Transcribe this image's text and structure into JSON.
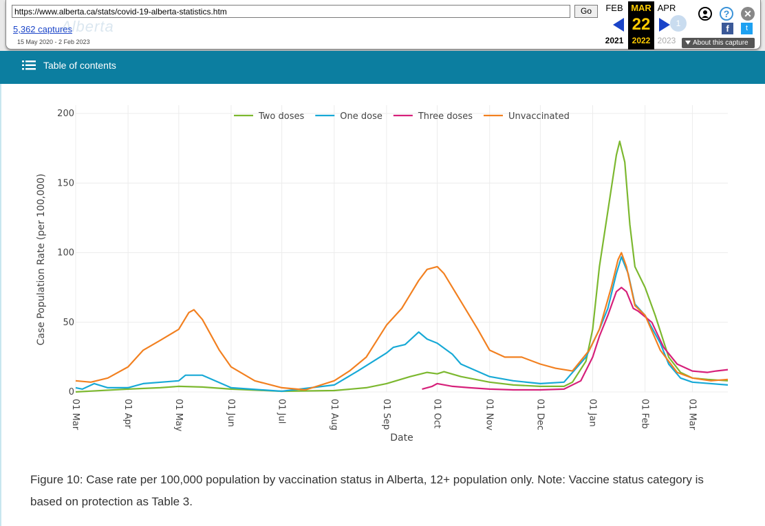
{
  "wayback": {
    "url": "https://www.alberta.ca/stats/covid-19-alberta-statistics.htm",
    "go_label": "Go",
    "captures": "5,362 captures",
    "date_range": "15 May 2020 - 2 Feb 2023",
    "logo_text": "Alberta",
    "months": {
      "prev": "FEB",
      "current": "MAR",
      "next": "APR"
    },
    "day": "22",
    "years": {
      "prev": "2021",
      "current": "2022",
      "next": "2023"
    },
    "spark_count": "1",
    "about_label": "About this capture",
    "icons": [
      "user-icon",
      "help-icon",
      "close-icon",
      "facebook-icon",
      "twitter-icon"
    ]
  },
  "site": {
    "toc_label": "Table of contents",
    "bar_color": "#0c7ea0"
  },
  "caption": "Figure 10: Case rate per 100,000 population by vaccination status in Alberta, 12+ population only. Note: Vaccine status category is based on protection as Table 3.",
  "chart_data": {
    "type": "line",
    "xlabel": "Date",
    "ylabel": "Case Population Rate (per 100,000)",
    "ylim": [
      0,
      200
    ],
    "yticks": [
      0,
      50,
      100,
      150,
      200
    ],
    "xlim": [
      "2021-03-01",
      "2022-03-22"
    ],
    "xticks": [
      {
        "date": "2021-03-01",
        "label": "01 Mar"
      },
      {
        "date": "2021-04-01",
        "label": "01 Apr"
      },
      {
        "date": "2021-05-01",
        "label": "01 May"
      },
      {
        "date": "2021-06-01",
        "label": "01 Jun"
      },
      {
        "date": "2021-07-01",
        "label": "01 Jul"
      },
      {
        "date": "2021-08-01",
        "label": "01 Aug"
      },
      {
        "date": "2021-09-01",
        "label": "01 Sep"
      },
      {
        "date": "2021-10-01",
        "label": "01 Oct"
      },
      {
        "date": "2021-11-01",
        "label": "01 Nov"
      },
      {
        "date": "2021-12-01",
        "label": "01 Dec"
      },
      {
        "date": "2022-01-01",
        "label": "01 Jan"
      },
      {
        "date": "2022-02-01",
        "label": "01 Feb"
      },
      {
        "date": "2022-03-01",
        "label": "01 Mar"
      }
    ],
    "grid": true,
    "legend_position": "top-center",
    "series": [
      {
        "name": "Two doses",
        "color": "#7cb82f",
        "points": [
          [
            "2021-03-01",
            0
          ],
          [
            "2021-04-01",
            2
          ],
          [
            "2021-04-20",
            3
          ],
          [
            "2021-05-01",
            4
          ],
          [
            "2021-05-15",
            3.5
          ],
          [
            "2021-06-01",
            2
          ],
          [
            "2021-07-01",
            0.5
          ],
          [
            "2021-08-01",
            1
          ],
          [
            "2021-08-20",
            3
          ],
          [
            "2021-09-01",
            6
          ],
          [
            "2021-09-15",
            11
          ],
          [
            "2021-09-25",
            14
          ],
          [
            "2021-10-01",
            13
          ],
          [
            "2021-10-05",
            14.5
          ],
          [
            "2021-10-15",
            11
          ],
          [
            "2021-11-01",
            7
          ],
          [
            "2021-11-15",
            5
          ],
          [
            "2021-12-01",
            4
          ],
          [
            "2021-12-15",
            4
          ],
          [
            "2021-12-20",
            7
          ],
          [
            "2021-12-28",
            22
          ],
          [
            "2022-01-01",
            45
          ],
          [
            "2022-01-05",
            90
          ],
          [
            "2022-01-10",
            130
          ],
          [
            "2022-01-15",
            170
          ],
          [
            "2022-01-17",
            180
          ],
          [
            "2022-01-20",
            165
          ],
          [
            "2022-01-23",
            120
          ],
          [
            "2022-01-26",
            90
          ],
          [
            "2022-02-01",
            75
          ],
          [
            "2022-02-07",
            55
          ],
          [
            "2022-02-15",
            25
          ],
          [
            "2022-02-22",
            14
          ],
          [
            "2022-03-01",
            10
          ],
          [
            "2022-03-10",
            9
          ],
          [
            "2022-03-22",
            8
          ]
        ]
      },
      {
        "name": "One dose",
        "color": "#17a9d6",
        "points": [
          [
            "2021-03-01",
            3
          ],
          [
            "2021-03-05",
            2
          ],
          [
            "2021-03-12",
            6
          ],
          [
            "2021-03-20",
            3
          ],
          [
            "2021-04-01",
            3
          ],
          [
            "2021-04-10",
            6
          ],
          [
            "2021-05-01",
            8
          ],
          [
            "2021-05-05",
            12
          ],
          [
            "2021-05-15",
            12
          ],
          [
            "2021-06-01",
            3
          ],
          [
            "2021-07-01",
            0.5
          ],
          [
            "2021-08-01",
            5
          ],
          [
            "2021-08-15",
            15
          ],
          [
            "2021-09-01",
            28
          ],
          [
            "2021-09-05",
            32
          ],
          [
            "2021-09-12",
            34
          ],
          [
            "2021-09-20",
            43
          ],
          [
            "2021-09-25",
            38
          ],
          [
            "2021-10-01",
            35
          ],
          [
            "2021-10-10",
            27
          ],
          [
            "2021-10-15",
            20
          ],
          [
            "2021-11-01",
            11
          ],
          [
            "2021-11-15",
            8
          ],
          [
            "2021-12-01",
            6
          ],
          [
            "2021-12-15",
            7
          ],
          [
            "2021-12-28",
            25
          ],
          [
            "2022-01-05",
            45
          ],
          [
            "2022-01-10",
            60
          ],
          [
            "2022-01-15",
            85
          ],
          [
            "2022-01-18",
            97
          ],
          [
            "2022-01-22",
            85
          ],
          [
            "2022-01-26",
            63
          ],
          [
            "2022-02-01",
            55
          ],
          [
            "2022-02-10",
            35
          ],
          [
            "2022-02-15",
            20
          ],
          [
            "2022-02-22",
            10
          ],
          [
            "2022-03-01",
            7
          ],
          [
            "2022-03-22",
            5
          ]
        ]
      },
      {
        "name": "Three doses",
        "color": "#d6207a",
        "points": [
          [
            "2021-09-22",
            2
          ],
          [
            "2021-09-28",
            4
          ],
          [
            "2021-10-01",
            6
          ],
          [
            "2021-10-10",
            4
          ],
          [
            "2021-10-20",
            3
          ],
          [
            "2021-11-01",
            2
          ],
          [
            "2021-11-15",
            1.5
          ],
          [
            "2021-12-01",
            1.5
          ],
          [
            "2021-12-15",
            2
          ],
          [
            "2021-12-25",
            8
          ],
          [
            "2022-01-01",
            25
          ],
          [
            "2022-01-05",
            40
          ],
          [
            "2022-01-10",
            55
          ],
          [
            "2022-01-15",
            72
          ],
          [
            "2022-01-18",
            75
          ],
          [
            "2022-01-21",
            72
          ],
          [
            "2022-01-25",
            60
          ],
          [
            "2022-01-28",
            58
          ],
          [
            "2022-02-05",
            50
          ],
          [
            "2022-02-12",
            32
          ],
          [
            "2022-02-20",
            20
          ],
          [
            "2022-03-01",
            15
          ],
          [
            "2022-03-10",
            14
          ],
          [
            "2022-03-15",
            15
          ],
          [
            "2022-03-22",
            16
          ]
        ]
      },
      {
        "name": "Unvaccinated",
        "color": "#f28020",
        "points": [
          [
            "2021-03-01",
            8
          ],
          [
            "2021-03-10",
            7
          ],
          [
            "2021-03-20",
            10
          ],
          [
            "2021-04-01",
            18
          ],
          [
            "2021-04-10",
            30
          ],
          [
            "2021-04-20",
            37
          ],
          [
            "2021-05-01",
            45
          ],
          [
            "2021-05-07",
            57
          ],
          [
            "2021-05-10",
            59
          ],
          [
            "2021-05-15",
            52
          ],
          [
            "2021-05-25",
            30
          ],
          [
            "2021-06-01",
            18
          ],
          [
            "2021-06-15",
            8
          ],
          [
            "2021-07-01",
            3
          ],
          [
            "2021-07-15",
            1.5
          ],
          [
            "2021-08-01",
            8
          ],
          [
            "2021-08-10",
            15
          ],
          [
            "2021-08-20",
            25
          ],
          [
            "2021-09-01",
            48
          ],
          [
            "2021-09-10",
            60
          ],
          [
            "2021-09-15",
            70
          ],
          [
            "2021-09-20",
            80
          ],
          [
            "2021-09-25",
            88
          ],
          [
            "2021-10-01",
            90
          ],
          [
            "2021-10-05",
            85
          ],
          [
            "2021-10-15",
            65
          ],
          [
            "2021-10-25",
            45
          ],
          [
            "2021-11-01",
            30
          ],
          [
            "2021-11-10",
            25
          ],
          [
            "2021-11-20",
            25
          ],
          [
            "2021-12-01",
            20
          ],
          [
            "2021-12-10",
            17
          ],
          [
            "2021-12-20",
            15
          ],
          [
            "2021-12-30",
            30
          ],
          [
            "2022-01-05",
            45
          ],
          [
            "2022-01-12",
            75
          ],
          [
            "2022-01-16",
            95
          ],
          [
            "2022-01-18",
            100
          ],
          [
            "2022-01-21",
            90
          ],
          [
            "2022-01-26",
            62
          ],
          [
            "2022-02-01",
            55
          ],
          [
            "2022-02-10",
            30
          ],
          [
            "2022-02-20",
            14
          ],
          [
            "2022-03-01",
            10
          ],
          [
            "2022-03-12",
            8
          ],
          [
            "2022-03-22",
            9
          ]
        ]
      }
    ]
  }
}
